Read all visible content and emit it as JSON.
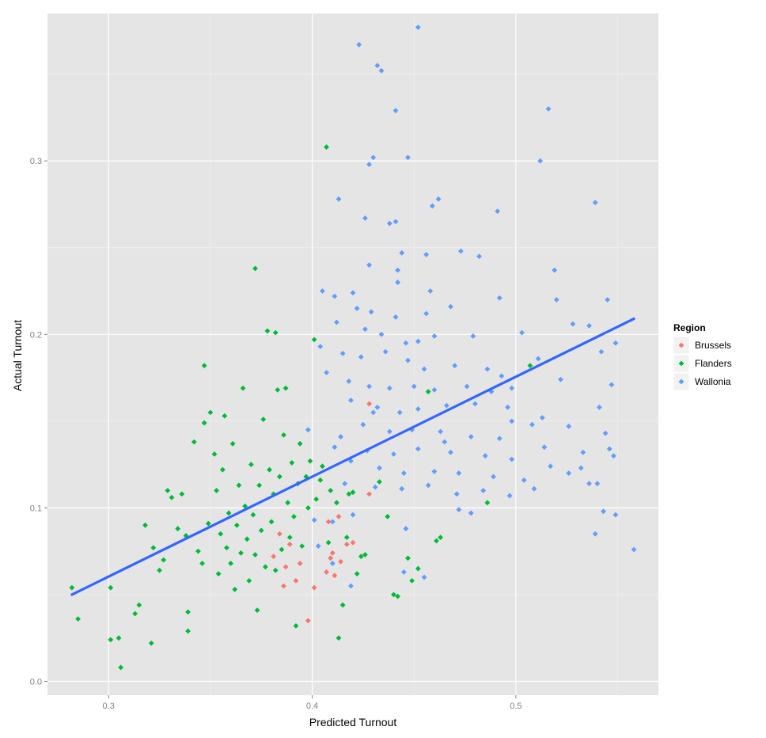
{
  "chart_data": {
    "type": "scatter",
    "xlabel": "Predicted Turnout",
    "ylabel": "Actual Turnout",
    "xlim": [
      0.27,
      0.57
    ],
    "ylim": [
      -0.008,
      0.385
    ],
    "xticks": [
      0.3,
      0.4,
      0.5
    ],
    "yticks": [
      0.0,
      0.1,
      0.2,
      0.3
    ],
    "xtick_labels": [
      "0.3",
      "0.4",
      "0.5"
    ],
    "ytick_labels": [
      "0.0",
      "0.1",
      "0.2",
      "0.3"
    ],
    "grid": true,
    "legend": {
      "title": "Region",
      "placement": "right"
    },
    "trend_line": {
      "color": "#3366ff",
      "x": [
        0.282,
        0.558
      ],
      "y": [
        0.05,
        0.209
      ]
    },
    "series": [
      {
        "name": "Brussels",
        "color": "#f8766d",
        "points": [
          [
            0.384,
            0.085
          ],
          [
            0.389,
            0.079
          ],
          [
            0.394,
            0.068
          ],
          [
            0.387,
            0.066
          ],
          [
            0.392,
            0.058
          ],
          [
            0.386,
            0.055
          ],
          [
            0.401,
            0.054
          ],
          [
            0.398,
            0.035
          ],
          [
            0.408,
            0.092
          ],
          [
            0.413,
            0.095
          ],
          [
            0.41,
            0.074
          ],
          [
            0.414,
            0.069
          ],
          [
            0.407,
            0.063
          ],
          [
            0.411,
            0.061
          ],
          [
            0.417,
            0.079
          ],
          [
            0.42,
            0.08
          ],
          [
            0.428,
            0.16
          ],
          [
            0.428,
            0.108
          ],
          [
            0.409,
            0.071
          ],
          [
            0.381,
            0.072
          ]
        ]
      },
      {
        "name": "Flanders",
        "color": "#00ba38",
        "points": [
          [
            0.282,
            0.054
          ],
          [
            0.285,
            0.036
          ],
          [
            0.301,
            0.054
          ],
          [
            0.301,
            0.024
          ],
          [
            0.305,
            0.025
          ],
          [
            0.306,
            0.008
          ],
          [
            0.313,
            0.039
          ],
          [
            0.315,
            0.044
          ],
          [
            0.318,
            0.09
          ],
          [
            0.321,
            0.022
          ],
          [
            0.322,
            0.077
          ],
          [
            0.325,
            0.064
          ],
          [
            0.327,
            0.07
          ],
          [
            0.329,
            0.11
          ],
          [
            0.331,
            0.106
          ],
          [
            0.334,
            0.088
          ],
          [
            0.336,
            0.108
          ],
          [
            0.338,
            0.084
          ],
          [
            0.339,
            0.04
          ],
          [
            0.339,
            0.029
          ],
          [
            0.342,
            0.138
          ],
          [
            0.344,
            0.075
          ],
          [
            0.346,
            0.068
          ],
          [
            0.347,
            0.149
          ],
          [
            0.347,
            0.182
          ],
          [
            0.349,
            0.091
          ],
          [
            0.35,
            0.155
          ],
          [
            0.352,
            0.131
          ],
          [
            0.353,
            0.11
          ],
          [
            0.354,
            0.062
          ],
          [
            0.355,
            0.085
          ],
          [
            0.356,
            0.122
          ],
          [
            0.357,
            0.153
          ],
          [
            0.358,
            0.077
          ],
          [
            0.359,
            0.097
          ],
          [
            0.36,
            0.068
          ],
          [
            0.361,
            0.137
          ],
          [
            0.362,
            0.053
          ],
          [
            0.363,
            0.09
          ],
          [
            0.364,
            0.113
          ],
          [
            0.365,
            0.074
          ],
          [
            0.366,
            0.169
          ],
          [
            0.367,
            0.101
          ],
          [
            0.368,
            0.082
          ],
          [
            0.369,
            0.058
          ],
          [
            0.37,
            0.125
          ],
          [
            0.371,
            0.096
          ],
          [
            0.372,
            0.073
          ],
          [
            0.372,
            0.238
          ],
          [
            0.373,
            0.041
          ],
          [
            0.374,
            0.113
          ],
          [
            0.375,
            0.087
          ],
          [
            0.376,
            0.151
          ],
          [
            0.377,
            0.066
          ],
          [
            0.378,
            0.202
          ],
          [
            0.379,
            0.122
          ],
          [
            0.38,
            0.092
          ],
          [
            0.381,
            0.108
          ],
          [
            0.382,
            0.064
          ],
          [
            0.382,
            0.201
          ],
          [
            0.383,
            0.168
          ],
          [
            0.384,
            0.118
          ],
          [
            0.385,
            0.076
          ],
          [
            0.386,
            0.142
          ],
          [
            0.387,
            0.169
          ],
          [
            0.388,
            0.103
          ],
          [
            0.389,
            0.083
          ],
          [
            0.39,
            0.126
          ],
          [
            0.391,
            0.095
          ],
          [
            0.392,
            0.032
          ],
          [
            0.393,
            0.114
          ],
          [
            0.394,
            0.137
          ],
          [
            0.395,
            0.078
          ],
          [
            0.397,
            0.118
          ],
          [
            0.398,
            0.1
          ],
          [
            0.399,
            0.127
          ],
          [
            0.401,
            0.197
          ],
          [
            0.402,
            0.105
          ],
          [
            0.404,
            0.116
          ],
          [
            0.405,
            0.124
          ],
          [
            0.407,
            0.308
          ],
          [
            0.408,
            0.08
          ],
          [
            0.409,
            0.11
          ],
          [
            0.412,
            0.103
          ],
          [
            0.413,
            0.025
          ],
          [
            0.415,
            0.044
          ],
          [
            0.417,
            0.083
          ],
          [
            0.418,
            0.108
          ],
          [
            0.42,
            0.109
          ],
          [
            0.422,
            0.062
          ],
          [
            0.424,
            0.072
          ],
          [
            0.426,
            0.073
          ],
          [
            0.433,
            0.115
          ],
          [
            0.437,
            0.095
          ],
          [
            0.44,
            0.05
          ],
          [
            0.442,
            0.049
          ],
          [
            0.447,
            0.071
          ],
          [
            0.449,
            0.058
          ],
          [
            0.452,
            0.065
          ],
          [
            0.457,
            0.167
          ],
          [
            0.461,
            0.081
          ],
          [
            0.463,
            0.083
          ],
          [
            0.486,
            0.103
          ],
          [
            0.507,
            0.182
          ]
        ]
      },
      {
        "name": "Wallonia",
        "color": "#619cff",
        "points": [
          [
            0.452,
            0.377
          ],
          [
            0.423,
            0.367
          ],
          [
            0.432,
            0.355
          ],
          [
            0.434,
            0.352
          ],
          [
            0.516,
            0.33
          ],
          [
            0.441,
            0.329
          ],
          [
            0.512,
            0.3
          ],
          [
            0.43,
            0.302
          ],
          [
            0.447,
            0.302
          ],
          [
            0.428,
            0.298
          ],
          [
            0.413,
            0.278
          ],
          [
            0.459,
            0.274
          ],
          [
            0.462,
            0.278
          ],
          [
            0.539,
            0.276
          ],
          [
            0.491,
            0.271
          ],
          [
            0.426,
            0.267
          ],
          [
            0.438,
            0.264
          ],
          [
            0.441,
            0.265
          ],
          [
            0.473,
            0.248
          ],
          [
            0.444,
            0.247
          ],
          [
            0.456,
            0.246
          ],
          [
            0.428,
            0.24
          ],
          [
            0.482,
            0.245
          ],
          [
            0.442,
            0.237
          ],
          [
            0.519,
            0.237
          ],
          [
            0.405,
            0.225
          ],
          [
            0.42,
            0.224
          ],
          [
            0.442,
            0.23
          ],
          [
            0.458,
            0.225
          ],
          [
            0.52,
            0.22
          ],
          [
            0.545,
            0.22
          ],
          [
            0.411,
            0.222
          ],
          [
            0.422,
            0.215
          ],
          [
            0.429,
            0.213
          ],
          [
            0.441,
            0.21
          ],
          [
            0.456,
            0.212
          ],
          [
            0.468,
            0.216
          ],
          [
            0.492,
            0.221
          ],
          [
            0.412,
            0.207
          ],
          [
            0.426,
            0.203
          ],
          [
            0.434,
            0.2
          ],
          [
            0.446,
            0.195
          ],
          [
            0.452,
            0.196
          ],
          [
            0.46,
            0.199
          ],
          [
            0.479,
            0.199
          ],
          [
            0.503,
            0.201
          ],
          [
            0.528,
            0.206
          ],
          [
            0.536,
            0.205
          ],
          [
            0.404,
            0.193
          ],
          [
            0.415,
            0.189
          ],
          [
            0.424,
            0.187
          ],
          [
            0.436,
            0.19
          ],
          [
            0.447,
            0.185
          ],
          [
            0.455,
            0.18
          ],
          [
            0.47,
            0.182
          ],
          [
            0.486,
            0.18
          ],
          [
            0.493,
            0.176
          ],
          [
            0.511,
            0.186
          ],
          [
            0.542,
            0.19
          ],
          [
            0.549,
            0.195
          ],
          [
            0.407,
            0.178
          ],
          [
            0.418,
            0.173
          ],
          [
            0.428,
            0.17
          ],
          [
            0.438,
            0.169
          ],
          [
            0.45,
            0.17
          ],
          [
            0.46,
            0.168
          ],
          [
            0.476,
            0.17
          ],
          [
            0.498,
            0.169
          ],
          [
            0.522,
            0.174
          ],
          [
            0.547,
            0.171
          ],
          [
            0.419,
            0.162
          ],
          [
            0.432,
            0.158
          ],
          [
            0.443,
            0.155
          ],
          [
            0.452,
            0.157
          ],
          [
            0.466,
            0.159
          ],
          [
            0.48,
            0.16
          ],
          [
            0.496,
            0.158
          ],
          [
            0.513,
            0.152
          ],
          [
            0.541,
            0.158
          ],
          [
            0.398,
            0.145
          ],
          [
            0.414,
            0.141
          ],
          [
            0.425,
            0.148
          ],
          [
            0.438,
            0.144
          ],
          [
            0.449,
            0.145
          ],
          [
            0.463,
            0.144
          ],
          [
            0.478,
            0.141
          ],
          [
            0.492,
            0.14
          ],
          [
            0.508,
            0.148
          ],
          [
            0.526,
            0.147
          ],
          [
            0.544,
            0.143
          ],
          [
            0.411,
            0.135
          ],
          [
            0.427,
            0.133
          ],
          [
            0.44,
            0.131
          ],
          [
            0.452,
            0.134
          ],
          [
            0.468,
            0.132
          ],
          [
            0.485,
            0.13
          ],
          [
            0.498,
            0.128
          ],
          [
            0.514,
            0.135
          ],
          [
            0.532,
            0.123
          ],
          [
            0.546,
            0.134
          ],
          [
            0.419,
            0.127
          ],
          [
            0.433,
            0.123
          ],
          [
            0.445,
            0.12
          ],
          [
            0.46,
            0.121
          ],
          [
            0.472,
            0.12
          ],
          [
            0.489,
            0.118
          ],
          [
            0.504,
            0.116
          ],
          [
            0.517,
            0.124
          ],
          [
            0.536,
            0.114
          ],
          [
            0.548,
            0.13
          ],
          [
            0.416,
            0.114
          ],
          [
            0.431,
            0.112
          ],
          [
            0.444,
            0.111
          ],
          [
            0.457,
            0.113
          ],
          [
            0.471,
            0.108
          ],
          [
            0.484,
            0.11
          ],
          [
            0.497,
            0.107
          ],
          [
            0.509,
            0.111
          ],
          [
            0.526,
            0.12
          ],
          [
            0.54,
            0.114
          ],
          [
            0.401,
            0.093
          ],
          [
            0.41,
            0.092
          ],
          [
            0.42,
            0.096
          ],
          [
            0.446,
            0.088
          ],
          [
            0.472,
            0.099
          ],
          [
            0.478,
            0.097
          ],
          [
            0.543,
            0.098
          ],
          [
            0.549,
            0.096
          ],
          [
            0.539,
            0.085
          ],
          [
            0.558,
            0.076
          ],
          [
            0.419,
            0.055
          ],
          [
            0.455,
            0.06
          ],
          [
            0.445,
            0.063
          ],
          [
            0.41,
            0.068
          ],
          [
            0.403,
            0.078
          ],
          [
            0.43,
            0.155
          ],
          [
            0.465,
            0.138
          ],
          [
            0.488,
            0.167
          ],
          [
            0.498,
            0.15
          ],
          [
            0.533,
            0.132
          ]
        ]
      }
    ]
  }
}
